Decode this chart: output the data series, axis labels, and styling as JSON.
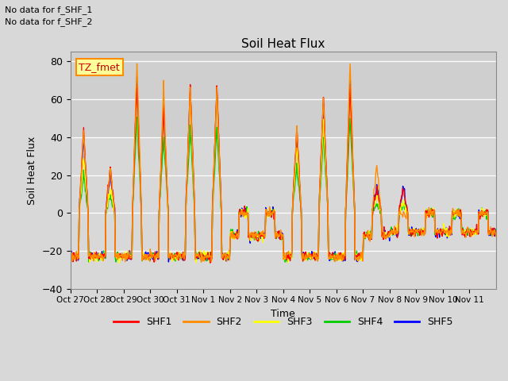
{
  "title": "Soil Heat Flux",
  "ylabel": "Soil Heat Flux",
  "xlabel": "Time",
  "ylim": [
    -40,
    85
  ],
  "yticks": [
    -40,
    -20,
    0,
    20,
    40,
    60,
    80
  ],
  "bg_color": "#d8d8d8",
  "plot_bg": "#d8d8d8",
  "annotation_text1": "No data for f_SHF_1",
  "annotation_text2": "No data for f_SHF_2",
  "tz_label": "TZ_fmet",
  "legend_labels": [
    "SHF1",
    "SHF2",
    "SHF3",
    "SHF4",
    "SHF5"
  ],
  "legend_colors": [
    "#ff0000",
    "#ff8c00",
    "#ffff00",
    "#00cc00",
    "#0000ff"
  ],
  "n_days": 16,
  "n_per_day": 48,
  "xtick_labels": [
    "Oct 27",
    "Oct 28",
    "Oct 29",
    "Oct 30",
    "Oct 31",
    "Nov 1",
    "Nov 2",
    "Nov 3",
    "Nov 4",
    "Nov 5",
    "Nov 6",
    "Nov 7",
    "Nov 8",
    "Nov 9",
    "Nov 10",
    "Nov 11"
  ],
  "grid_color": "#c8c8c8",
  "line_width": 1.0,
  "day_peaks_shf1": [
    44,
    24,
    67,
    55,
    67,
    67,
    0,
    0,
    45,
    62,
    67,
    13,
    13,
    0,
    0,
    0
  ],
  "day_peaks_shf2": [
    44,
    24,
    80,
    65,
    67,
    67,
    0,
    0,
    45,
    62,
    80,
    26,
    0,
    0,
    0,
    0
  ],
  "day_peaks_shf3": [
    30,
    12,
    65,
    55,
    62,
    62,
    0,
    0,
    35,
    50,
    65,
    10,
    5,
    0,
    0,
    0
  ],
  "day_peaks_shf4": [
    20,
    8,
    50,
    40,
    45,
    45,
    0,
    0,
    25,
    40,
    50,
    5,
    5,
    0,
    0,
    0
  ],
  "day_peaks_shf5": [
    40,
    22,
    70,
    55,
    65,
    65,
    0,
    0,
    42,
    58,
    70,
    15,
    14,
    0,
    0,
    0
  ],
  "night_vals": [
    -23,
    -23,
    -23,
    -23,
    -23,
    -23,
    -12,
    -12,
    -23,
    -23,
    -23,
    -12,
    -10,
    -10,
    -10,
    -10
  ]
}
